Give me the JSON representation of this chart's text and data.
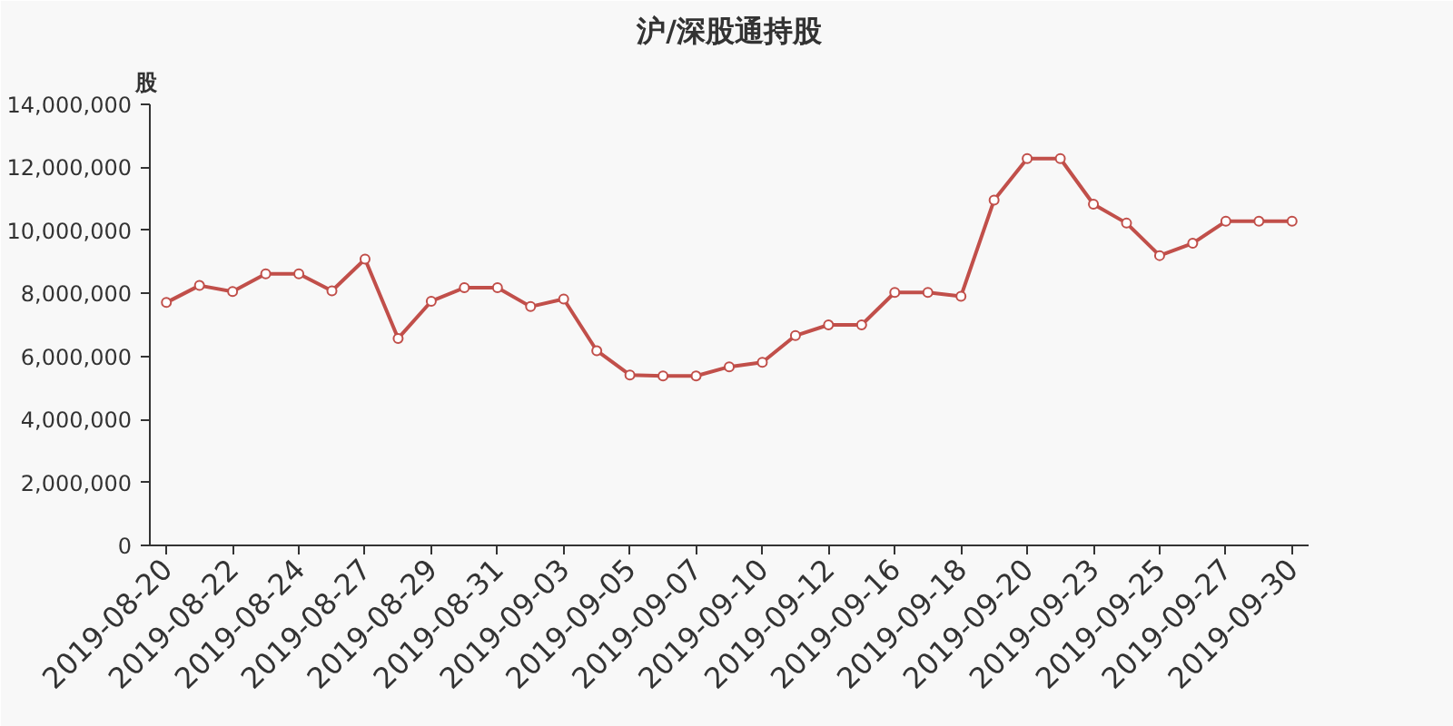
{
  "chart_data": {
    "type": "line",
    "title": "沪/深股通持股",
    "ylabel": "股",
    "categories": [
      "2019-08-20",
      null,
      "2019-08-22",
      null,
      "2019-08-24",
      null,
      "2019-08-27",
      null,
      "2019-08-29",
      null,
      "2019-08-31",
      null,
      "2019-09-03",
      null,
      "2019-09-05",
      null,
      "2019-09-07",
      null,
      "2019-09-10",
      null,
      "2019-09-12",
      null,
      "2019-09-16",
      null,
      "2019-09-18",
      null,
      "2019-09-20",
      null,
      "2019-09-23",
      null,
      "2019-09-25",
      null,
      "2019-09-27",
      null,
      "2019-09-30"
    ],
    "series": [
      {
        "color": "#c14f4a",
        "values": [
          7710000,
          8250000,
          8060000,
          8620000,
          8620000,
          8080000,
          9090000,
          6570000,
          7750000,
          8180000,
          8180000,
          7580000,
          7820000,
          6180000,
          5410000,
          5380000,
          5380000,
          5670000,
          5810000,
          6660000,
          7000000,
          7000000,
          8030000,
          8030000,
          7910000,
          10960000,
          12280000,
          12280000,
          10830000,
          10230000,
          9200000,
          9590000,
          10290000,
          10290000,
          10290000
        ]
      }
    ],
    "ylim": [
      0,
      14000000
    ],
    "yticks": [
      {
        "value": 0,
        "label": "0"
      },
      {
        "value": 2000000,
        "label": "2,000,000"
      },
      {
        "value": 4000000,
        "label": "4,000,000"
      },
      {
        "value": 6000000,
        "label": "6,000,000"
      },
      {
        "value": 8000000,
        "label": "8,000,000"
      },
      {
        "value": 10000000,
        "label": "10,000,000"
      },
      {
        "value": 12000000,
        "label": "12,000,000"
      },
      {
        "value": 14000000,
        "label": "14,000,000"
      }
    ],
    "grid": false,
    "marker": "circle",
    "line_style": "solid"
  }
}
